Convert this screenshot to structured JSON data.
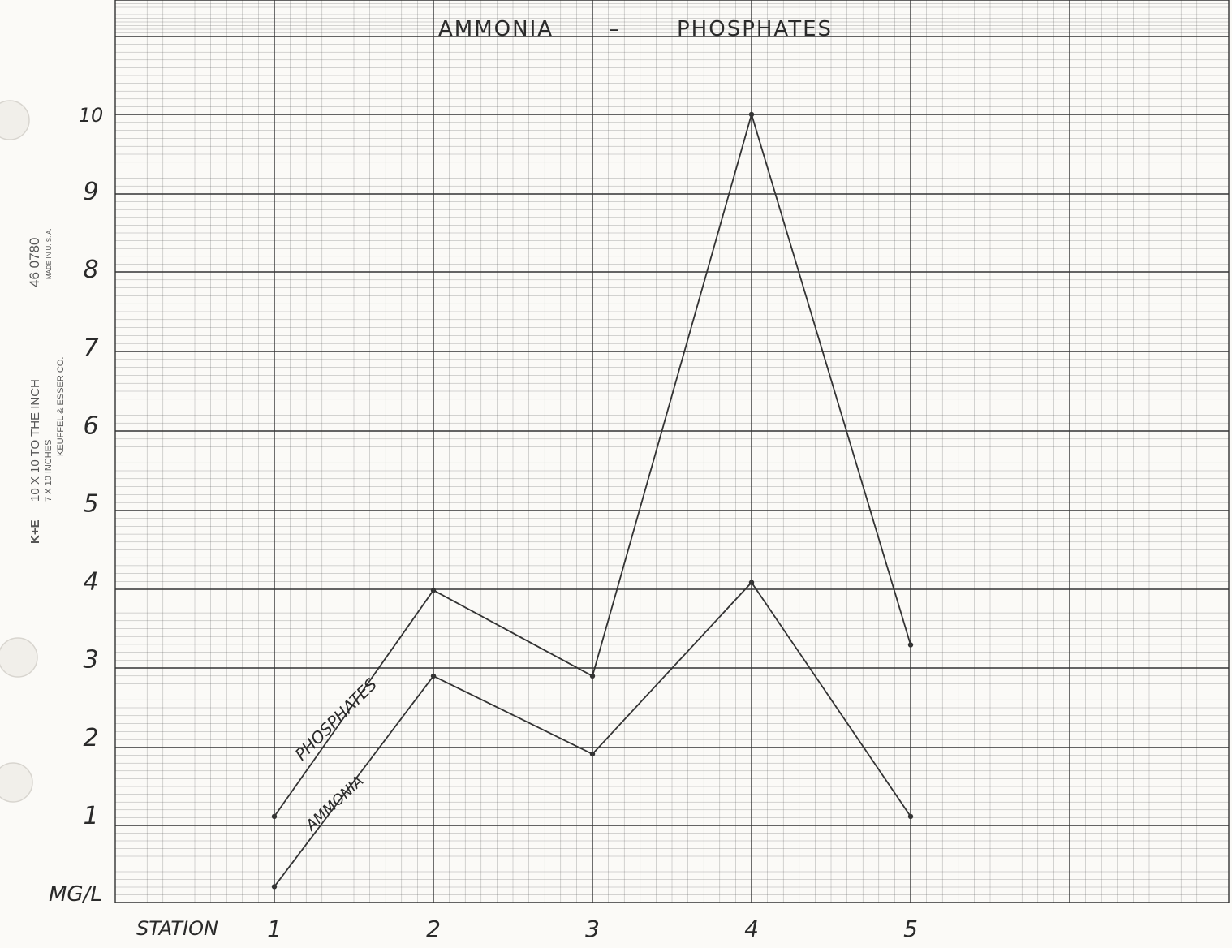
{
  "paper": {
    "line1": "10 X 10 TO THE INCH",
    "line2": "7 X 10 INCHES",
    "line3": "KEUFFEL & ESSER CO.",
    "catalog": "46 0780",
    "made_in": "MADE IN U. S. A.",
    "logo": "K+E",
    "grid_color": "#555555",
    "paper_color": "#fbfaf7"
  },
  "chart_data": {
    "type": "line",
    "title_left": "AMMONIA",
    "title_sep": "–",
    "title_right": "PHOSPHATES",
    "xlabel": "STATION",
    "ylabel": "MG/L",
    "categories": [
      "1",
      "2",
      "3",
      "4",
      "5"
    ],
    "y_ticks": [
      "1",
      "2",
      "3",
      "4",
      "5",
      "6",
      "7",
      "8",
      "9",
      "10"
    ],
    "ylim": [
      0,
      10
    ],
    "grid": true,
    "series": [
      {
        "name": "PHOSPHATES",
        "values": [
          1.0,
          3.9,
          2.8,
          10.0,
          3.2
        ],
        "color": "#333333"
      },
      {
        "name": "AMMONIA",
        "values": [
          0.1,
          2.8,
          1.8,
          4.0,
          1.0
        ],
        "color": "#333333"
      }
    ]
  }
}
